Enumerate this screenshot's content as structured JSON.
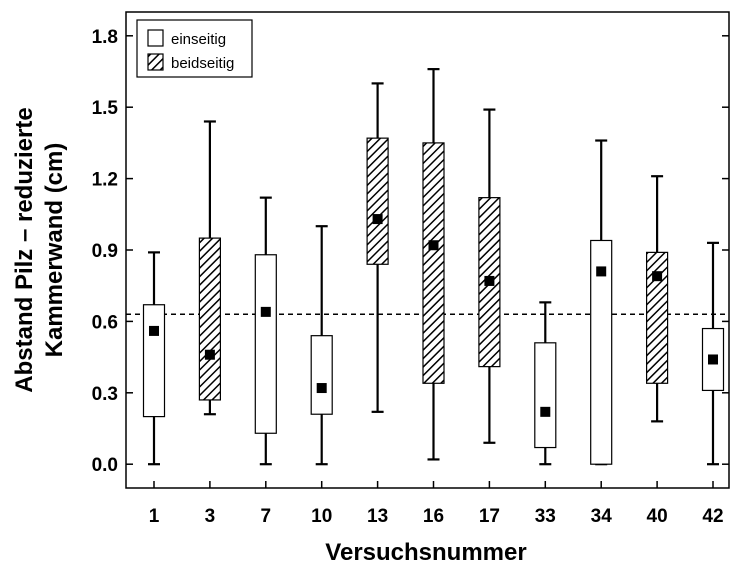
{
  "chart_data": {
    "type": "box",
    "xlabel": "Versuchsnummer",
    "ylabel_lines": [
      "Abstand Pilz – reduzierte",
      "Kammerwand (cm)"
    ],
    "ylim": [
      -0.1,
      1.9
    ],
    "yticks": [
      "0.0",
      "0.3",
      "0.6",
      "0.9",
      "1.2",
      "1.5",
      "1.8"
    ],
    "reference_line": 0.63,
    "legend": {
      "position": "top-left",
      "items": [
        {
          "label": "einseitig",
          "style": "plain"
        },
        {
          "label": "beidseitig",
          "style": "hatched"
        }
      ]
    },
    "series": [
      {
        "name": "einseitig",
        "style": "plain"
      },
      {
        "name": "beidseitig",
        "style": "hatched"
      }
    ],
    "boxes": [
      {
        "category": "1",
        "series": "einseitig",
        "min": 0.0,
        "q1": 0.2,
        "median": 0.56,
        "q3": 0.67,
        "max": 0.89
      },
      {
        "category": "3",
        "series": "beidseitig",
        "min": 0.21,
        "q1": 0.27,
        "median": 0.46,
        "q3": 0.95,
        "max": 1.44
      },
      {
        "category": "7",
        "series": "einseitig",
        "min": 0.0,
        "q1": 0.13,
        "median": 0.64,
        "q3": 0.88,
        "max": 1.12
      },
      {
        "category": "10",
        "series": "einseitig",
        "min": 0.0,
        "q1": 0.21,
        "median": 0.32,
        "q3": 0.54,
        "max": 1.0
      },
      {
        "category": "13",
        "series": "beidseitig",
        "min": 0.22,
        "q1": 0.84,
        "median": 1.03,
        "q3": 1.37,
        "max": 1.6
      },
      {
        "category": "16",
        "series": "beidseitig",
        "min": 0.02,
        "q1": 0.34,
        "median": 0.92,
        "q3": 1.35,
        "max": 1.66
      },
      {
        "category": "17",
        "series": "beidseitig",
        "min": 0.09,
        "q1": 0.41,
        "median": 0.77,
        "q3": 1.12,
        "max": 1.49
      },
      {
        "category": "33",
        "series": "einseitig",
        "min": 0.0,
        "q1": 0.07,
        "median": 0.22,
        "q3": 0.51,
        "max": 0.68
      },
      {
        "category": "34",
        "series": "einseitig",
        "min": 0.0,
        "q1": 0.0,
        "median": 0.81,
        "q3": 0.94,
        "max": 1.36
      },
      {
        "category": "40",
        "series": "beidseitig",
        "min": 0.18,
        "q1": 0.34,
        "median": 0.79,
        "q3": 0.89,
        "max": 1.21
      },
      {
        "category": "42",
        "series": "einseitig",
        "min": 0.0,
        "q1": 0.31,
        "median": 0.44,
        "q3": 0.57,
        "max": 0.93
      }
    ]
  }
}
